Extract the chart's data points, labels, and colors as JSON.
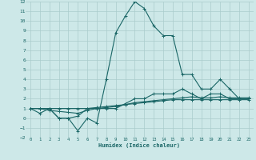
{
  "xlabel": "Humidex (Indice chaleur)",
  "background_color": "#cde8e8",
  "grid_color": "#aacccc",
  "line_color": "#1a6666",
  "x_values": [
    0,
    1,
    2,
    3,
    4,
    5,
    6,
    7,
    8,
    9,
    10,
    11,
    12,
    13,
    14,
    15,
    16,
    17,
    18,
    19,
    20,
    21,
    22,
    23
  ],
  "series": [
    [
      1,
      0.5,
      1,
      0,
      0,
      -1.3,
      0,
      -0.5,
      4,
      8.8,
      10.5,
      12,
      11.3,
      9.5,
      8.5,
      8.5,
      4.5,
      4.5,
      3,
      3,
      4,
      3,
      2,
      2
    ],
    [
      1,
      1,
      1,
      0,
      0,
      0.2,
      1,
      1,
      1,
      1,
      1.5,
      2,
      2,
      2.5,
      2.5,
      2.5,
      3,
      2.5,
      2,
      2.5,
      2.5,
      2,
      2,
      2
    ],
    [
      1,
      1,
      0.8,
      0.7,
      0.6,
      0.5,
      0.8,
      1.0,
      1.1,
      1.2,
      1.4,
      1.6,
      1.7,
      1.8,
      1.9,
      2.0,
      2.1,
      2.2,
      2.1,
      2.1,
      2.2,
      2.1,
      2.1,
      2.1
    ],
    [
      1,
      1,
      1.0,
      1.0,
      1.0,
      1.0,
      1.0,
      1.1,
      1.2,
      1.3,
      1.4,
      1.5,
      1.6,
      1.7,
      1.8,
      1.9,
      1.9,
      1.9,
      1.9,
      1.9,
      1.9,
      1.9,
      1.9,
      1.9
    ]
  ],
  "ylim": [
    -2,
    12
  ],
  "xlim": [
    -0.5,
    23.5
  ],
  "yticks": [
    -2,
    -1,
    0,
    1,
    2,
    3,
    4,
    5,
    6,
    7,
    8,
    9,
    10,
    11,
    12
  ],
  "xticks": [
    0,
    1,
    2,
    3,
    4,
    5,
    6,
    7,
    8,
    9,
    10,
    11,
    12,
    13,
    14,
    15,
    16,
    17,
    18,
    19,
    20,
    21,
    22,
    23
  ]
}
